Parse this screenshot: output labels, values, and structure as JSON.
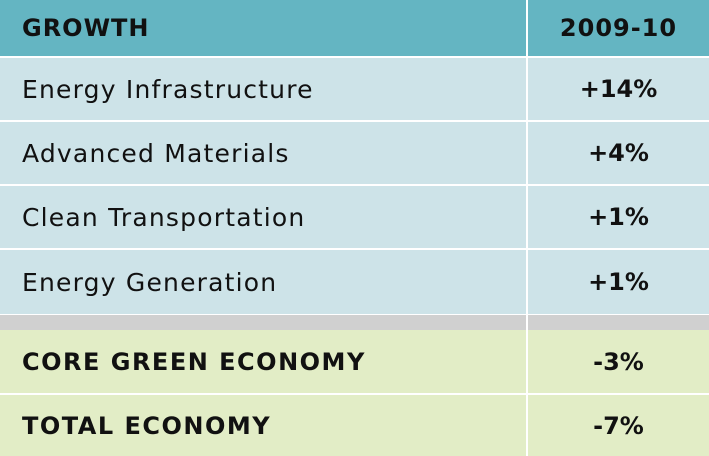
{
  "header": {
    "label": "GROWTH",
    "period": "2009-10"
  },
  "sectors": [
    {
      "name": "Energy Infrastructure",
      "growth": "+14%"
    },
    {
      "name": "Advanced Materials",
      "growth": "+4%"
    },
    {
      "name": "Clean Transportation",
      "growth": "+1%"
    },
    {
      "name": "Energy Generation",
      "growth": "+1%"
    }
  ],
  "totals": [
    {
      "name": "CORE GREEN ECONOMY",
      "growth": "-3%"
    },
    {
      "name": "TOTAL ECONOMY",
      "growth": "-7%"
    }
  ],
  "colors": {
    "header_bg": "#64b5c2",
    "row_bg": "#cde3e8",
    "summary_bg": "#e2edc6",
    "band_gray": "#d0d0d0"
  }
}
